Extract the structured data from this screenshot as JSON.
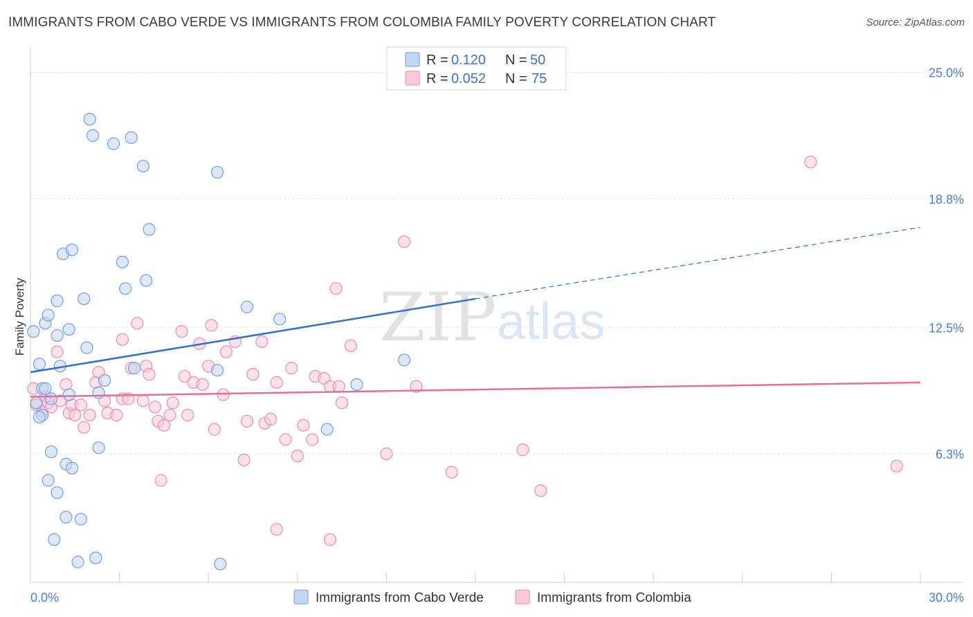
{
  "header": {
    "title": "IMMIGRANTS FROM CABO VERDE VS IMMIGRANTS FROM COLOMBIA FAMILY POVERTY CORRELATION CHART",
    "source": "Source: ZipAtlas.com"
  },
  "watermark": {
    "zip": "ZIP",
    "atlas": "atlas"
  },
  "legend": {
    "r_label": "R =",
    "n_label": "N =",
    "series1": {
      "r": "0.120",
      "n": "50"
    },
    "series2": {
      "r": "0.052",
      "n": "75"
    }
  },
  "bottom_legend": {
    "series1": "Immigrants from Cabo Verde",
    "series2": "Immigrants from Colombia"
  },
  "colors": {
    "blue_fill": "#c2d6f3",
    "blue_stroke": "#6f9fe0",
    "blue_line": "#2f6fce",
    "pink_fill": "#f8c9d8",
    "pink_stroke": "#ea8eae",
    "pink_line": "#e0709a",
    "grid": "#e3e3e3",
    "axis_text": "#4a7fcf"
  },
  "chart_data": {
    "type": "scatter",
    "title": "IMMIGRANTS FROM CABO VERDE VS IMMIGRANTS FROM COLOMBIA FAMILY POVERTY CORRELATION CHART",
    "xlabel": "",
    "ylabel": "Family Poverty",
    "xlim": [
      0,
      30
    ],
    "ylim": [
      0,
      26
    ],
    "x_tick_labels": [
      {
        "value": 0,
        "label": "0.0%"
      },
      {
        "value": 30,
        "label": "30.0%"
      }
    ],
    "y_ticks": [
      {
        "value": 6.3,
        "label": "6.3%"
      },
      {
        "value": 12.5,
        "label": "12.5%"
      },
      {
        "value": 18.8,
        "label": "18.8%"
      },
      {
        "value": 25.0,
        "label": "25.0%"
      }
    ],
    "grid": true,
    "legend_position": "top-center",
    "series": [
      {
        "name": "Immigrants from Cabo Verde",
        "R": 0.12,
        "N": 50,
        "trend": {
          "x0": 0,
          "y0": 10.3,
          "x1": 15,
          "y1": 13.9,
          "dash_to_x": 30,
          "dash_to_y": 17.4
        },
        "points": [
          [
            0.1,
            12.3
          ],
          [
            0.3,
            10.7
          ],
          [
            0.4,
            9.5
          ],
          [
            0.4,
            8.2
          ],
          [
            0.5,
            12.7
          ],
          [
            0.6,
            13.1
          ],
          [
            0.7,
            9.0
          ],
          [
            0.9,
            12.1
          ],
          [
            0.9,
            13.8
          ],
          [
            1.0,
            10.6
          ],
          [
            1.1,
            16.1
          ],
          [
            1.2,
            5.8
          ],
          [
            1.3,
            12.4
          ],
          [
            1.4,
            5.6
          ],
          [
            1.4,
            16.3
          ],
          [
            1.7,
            3.1
          ],
          [
            1.8,
            13.9
          ],
          [
            1.9,
            11.5
          ],
          [
            2.0,
            22.7
          ],
          [
            2.1,
            21.9
          ],
          [
            2.2,
            1.2
          ],
          [
            2.3,
            9.3
          ],
          [
            2.5,
            9.9
          ],
          [
            2.8,
            21.5
          ],
          [
            3.1,
            15.7
          ],
          [
            3.2,
            14.4
          ],
          [
            3.4,
            21.8
          ],
          [
            3.5,
            10.5
          ],
          [
            3.8,
            20.4
          ],
          [
            3.9,
            14.8
          ],
          [
            4.0,
            17.3
          ],
          [
            0.3,
            8.1
          ],
          [
            0.7,
            6.4
          ],
          [
            0.6,
            5.0
          ],
          [
            0.9,
            4.4
          ],
          [
            1.2,
            3.2
          ],
          [
            0.8,
            2.1
          ],
          [
            1.6,
            1.0
          ],
          [
            6.3,
            20.1
          ],
          [
            6.3,
            10.4
          ],
          [
            6.4,
            0.9
          ],
          [
            7.3,
            13.5
          ],
          [
            8.4,
            12.9
          ],
          [
            11.0,
            9.7
          ],
          [
            12.6,
            10.9
          ],
          [
            10.0,
            7.5
          ],
          [
            2.3,
            6.6
          ],
          [
            1.3,
            9.2
          ],
          [
            0.2,
            8.8
          ],
          [
            0.5,
            9.5
          ]
        ]
      },
      {
        "name": "Immigrants from Colombia",
        "R": 0.052,
        "N": 75,
        "trend": {
          "x0": 0,
          "y0": 9.1,
          "x1": 30,
          "y1": 9.8
        },
        "points": [
          [
            0.1,
            9.5
          ],
          [
            0.2,
            8.7
          ],
          [
            0.4,
            8.4
          ],
          [
            0.5,
            9.1
          ],
          [
            0.6,
            8.8
          ],
          [
            0.7,
            8.6
          ],
          [
            0.9,
            11.3
          ],
          [
            1.0,
            8.9
          ],
          [
            1.2,
            9.7
          ],
          [
            1.3,
            8.3
          ],
          [
            1.4,
            8.7
          ],
          [
            1.5,
            8.2
          ],
          [
            1.7,
            8.7
          ],
          [
            1.8,
            7.6
          ],
          [
            2.0,
            8.2
          ],
          [
            2.2,
            9.8
          ],
          [
            2.3,
            10.3
          ],
          [
            2.5,
            8.9
          ],
          [
            2.6,
            8.3
          ],
          [
            2.9,
            8.2
          ],
          [
            3.1,
            9.0
          ],
          [
            3.1,
            11.9
          ],
          [
            3.3,
            9.0
          ],
          [
            3.4,
            10.5
          ],
          [
            3.6,
            12.7
          ],
          [
            3.8,
            8.9
          ],
          [
            3.9,
            10.6
          ],
          [
            4.0,
            10.2
          ],
          [
            4.2,
            8.6
          ],
          [
            4.3,
            7.9
          ],
          [
            4.4,
            5.0
          ],
          [
            4.5,
            7.7
          ],
          [
            4.7,
            8.2
          ],
          [
            4.8,
            8.8
          ],
          [
            5.1,
            12.3
          ],
          [
            5.2,
            10.1
          ],
          [
            5.3,
            8.2
          ],
          [
            5.5,
            9.8
          ],
          [
            5.7,
            11.7
          ],
          [
            5.8,
            9.7
          ],
          [
            6.0,
            10.6
          ],
          [
            6.1,
            12.6
          ],
          [
            6.2,
            7.5
          ],
          [
            6.5,
            9.2
          ],
          [
            6.6,
            11.3
          ],
          [
            6.9,
            11.8
          ],
          [
            7.2,
            6.0
          ],
          [
            7.3,
            7.9
          ],
          [
            7.5,
            10.2
          ],
          [
            7.8,
            11.8
          ],
          [
            7.9,
            7.8
          ],
          [
            8.1,
            8.0
          ],
          [
            8.3,
            9.8
          ],
          [
            8.6,
            7.0
          ],
          [
            8.8,
            10.5
          ],
          [
            9.0,
            6.2
          ],
          [
            9.2,
            7.7
          ],
          [
            9.5,
            7.0
          ],
          [
            9.6,
            10.1
          ],
          [
            9.9,
            10.0
          ],
          [
            10.1,
            9.6
          ],
          [
            10.3,
            14.4
          ],
          [
            10.4,
            9.6
          ],
          [
            10.5,
            8.8
          ],
          [
            10.8,
            11.6
          ],
          [
            12.0,
            6.3
          ],
          [
            12.6,
            16.7
          ],
          [
            13.0,
            9.6
          ],
          [
            14.2,
            5.4
          ],
          [
            16.6,
            6.5
          ],
          [
            17.2,
            4.5
          ],
          [
            26.3,
            20.6
          ],
          [
            29.2,
            5.7
          ],
          [
            8.3,
            2.6
          ],
          [
            10.1,
            2.1
          ]
        ]
      }
    ]
  }
}
